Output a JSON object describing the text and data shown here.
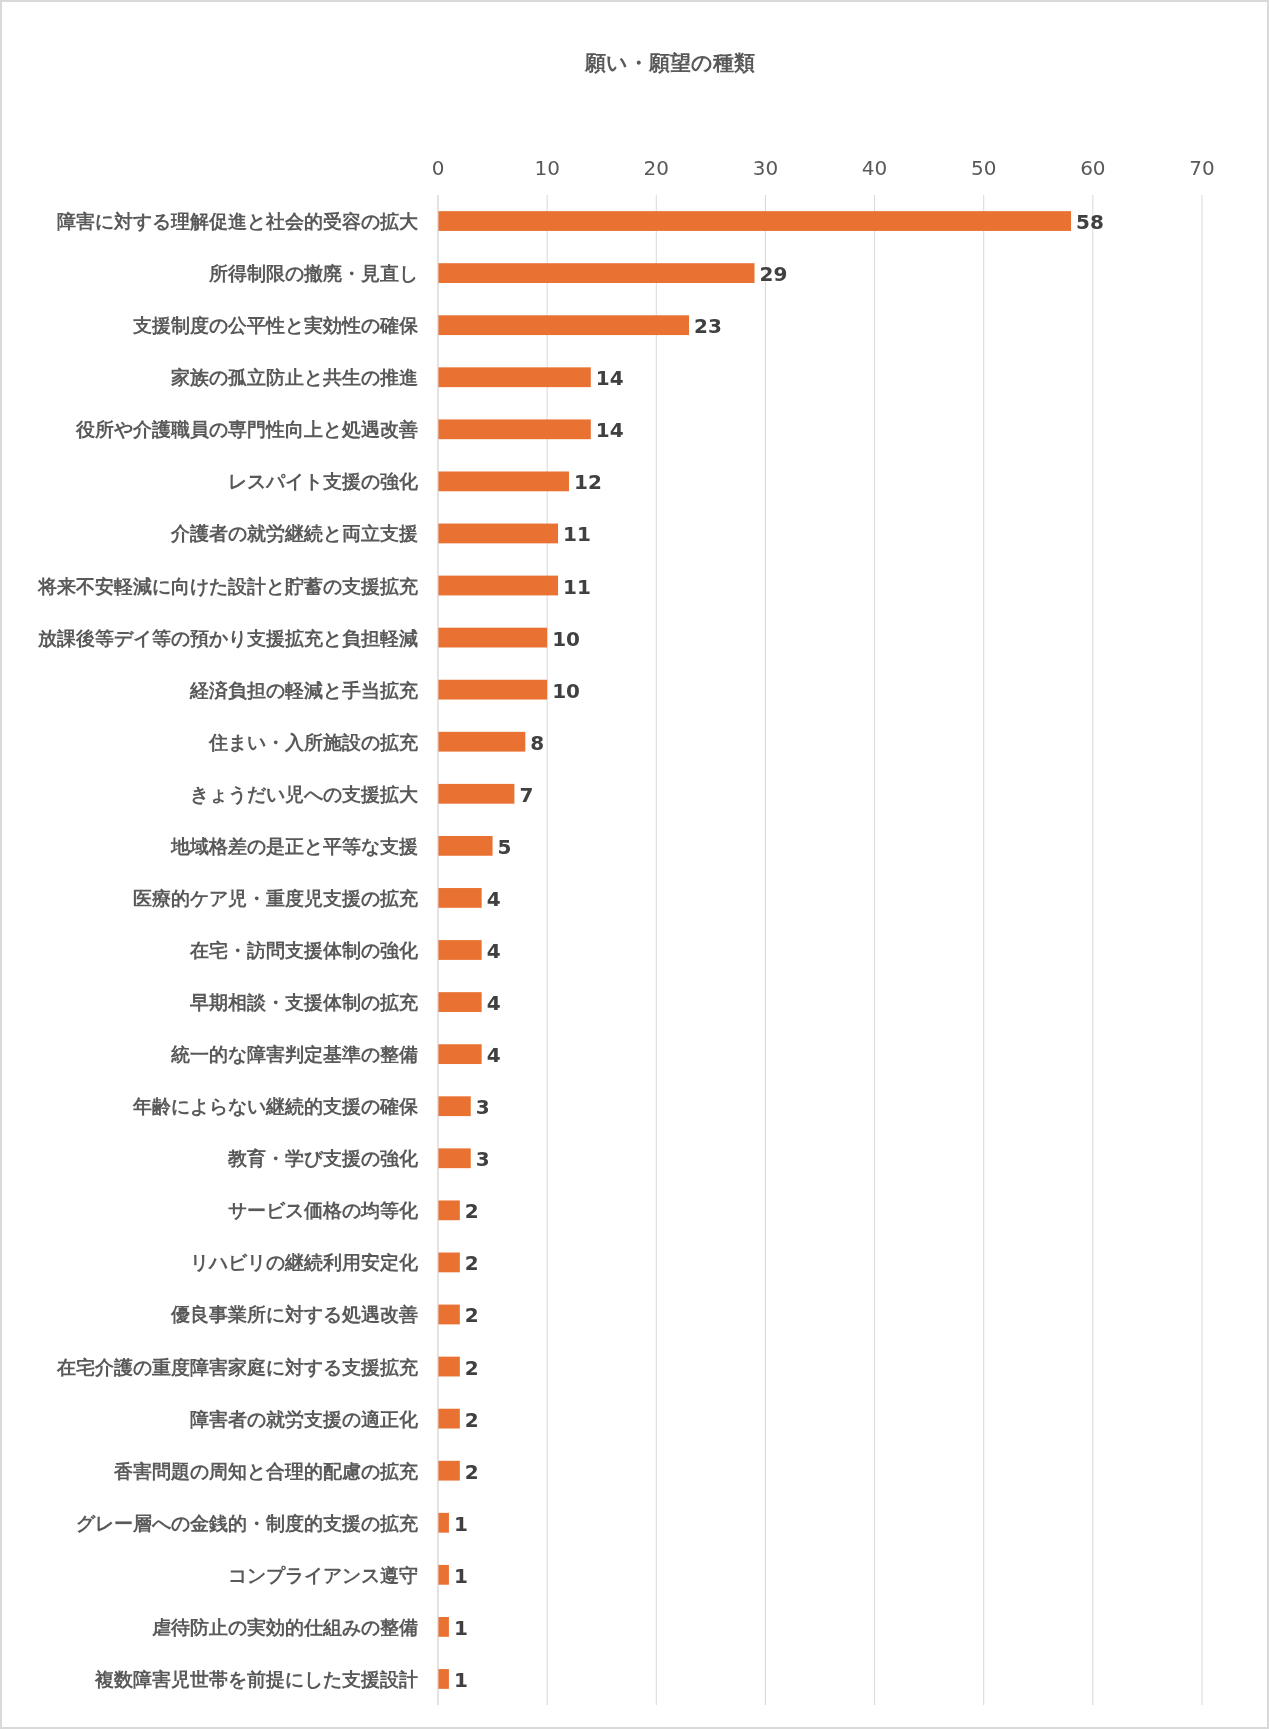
{
  "chart_data": {
    "type": "bar",
    "orientation": "horizontal",
    "title": "願い・願望の種類",
    "categories": [
      "障害に対する理解促進と社会的受容の拡大",
      "所得制限の撤廃・見直し",
      "支援制度の公平性と実効性の確保",
      "家族の孤立防止と共生の推進",
      "役所や介護職員の専門性向上と処遇改善",
      "レスパイト支援の強化",
      "介護者の就労継続と両立支援",
      "将来不安軽減に向けた設計と貯蓄の支援拡充",
      "放課後等デイ等の預かり支援拡充と負担軽減",
      "経済負担の軽減と手当拡充",
      "住まい・入所施設の拡充",
      "きょうだい児への支援拡大",
      "地域格差の是正と平等な支援",
      "医療的ケア児・重度児支援の拡充",
      "在宅・訪問支援体制の強化",
      "早期相談・支援体制の拡充",
      "統一的な障害判定基準の整備",
      "年齢によらない継続的支援の確保",
      "教育・学び支援の強化",
      "サービス価格の均等化",
      "リハビリの継続利用安定化",
      "優良事業所に対する処遇改善",
      "在宅介護の重度障害家庭に対する支援拡充",
      "障害者の就労支援の適正化",
      "香害問題の周知と合理的配慮の拡充",
      "グレー層への金銭的・制度的支援の拡充",
      "コンプライアンス遵守",
      "虐待防止の実効的仕組みの整備",
      "複数障害児世帯を前提にした支援設計"
    ],
    "values": [
      58,
      29,
      23,
      14,
      14,
      12,
      11,
      11,
      10,
      10,
      8,
      7,
      5,
      4,
      4,
      4,
      4,
      3,
      3,
      2,
      2,
      2,
      2,
      2,
      2,
      1,
      1,
      1,
      1
    ],
    "color": "#e97132",
    "xlim": [
      0,
      70
    ],
    "xticks": [
      0,
      10,
      20,
      30,
      40,
      50,
      60,
      70
    ],
    "grid": "x",
    "data_labels": true
  }
}
